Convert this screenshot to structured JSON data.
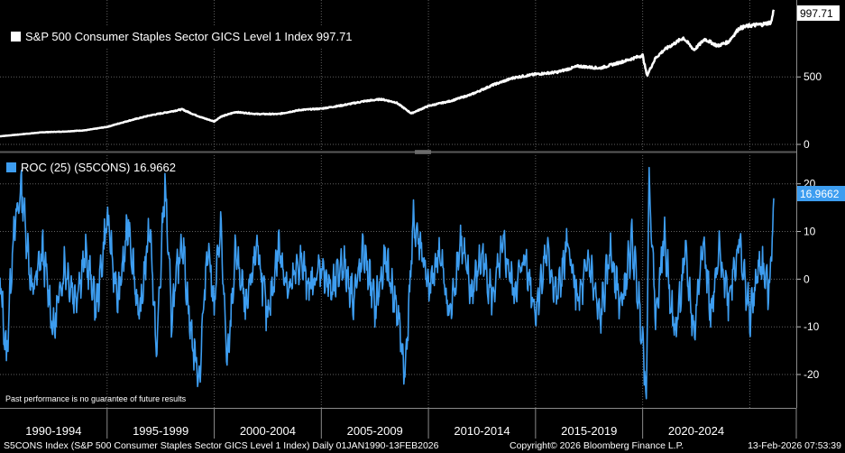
{
  "chart_data": [
    {
      "type": "line",
      "legend_label": "S&P 500 Consumer Staples Sector GICS Level 1 Index 997.71",
      "series": [
        {
          "name": "S&P 500 Consumer Staples Sector GICS Level 1 Index",
          "color": "#ffffff",
          "points": [
            [
              1990.0,
              60
            ],
            [
              1991.0,
              75
            ],
            [
              1992.0,
              90
            ],
            [
              1993.0,
              95
            ],
            [
              1994.0,
              105
            ],
            [
              1995.0,
              130
            ],
            [
              1996.0,
              175
            ],
            [
              1997.0,
              215
            ],
            [
              1997.7,
              235
            ],
            [
              1998.5,
              260
            ],
            [
              1999.0,
              225
            ],
            [
              1999.5,
              195
            ],
            [
              2000.0,
              170
            ],
            [
              2000.3,
              205
            ],
            [
              2001.0,
              240
            ],
            [
              2002.0,
              225
            ],
            [
              2003.0,
              225
            ],
            [
              2004.0,
              255
            ],
            [
              2005.0,
              265
            ],
            [
              2006.0,
              290
            ],
            [
              2007.0,
              320
            ],
            [
              2007.8,
              335
            ],
            [
              2008.5,
              310
            ],
            [
              2009.2,
              230
            ],
            [
              2010.0,
              285
            ],
            [
              2011.0,
              320
            ],
            [
              2012.0,
              370
            ],
            [
              2013.0,
              440
            ],
            [
              2014.0,
              495
            ],
            [
              2015.0,
              520
            ],
            [
              2016.0,
              535
            ],
            [
              2017.0,
              580
            ],
            [
              2018.0,
              565
            ],
            [
              2019.0,
              610
            ],
            [
              2020.0,
              660
            ],
            [
              2020.2,
              510
            ],
            [
              2020.6,
              640
            ],
            [
              2021.0,
              700
            ],
            [
              2021.9,
              790
            ],
            [
              2022.4,
              700
            ],
            [
              2022.9,
              780
            ],
            [
              2023.5,
              730
            ],
            [
              2024.0,
              760
            ],
            [
              2024.5,
              860
            ],
            [
              2025.0,
              880
            ],
            [
              2025.6,
              890
            ],
            [
              2026.0,
              905
            ],
            [
              2026.12,
              997.71
            ]
          ]
        }
      ],
      "last_value_label": "997.71",
      "ytick_labels": [
        "500",
        "0"
      ],
      "ylim": [
        -40,
        1070
      ]
    },
    {
      "type": "line",
      "legend_label": "ROC (25) (S5CONS) 16.9662",
      "series": [
        {
          "name": "ROC (25) (S5CONS)",
          "color": "#3d9df0",
          "points": [
            [
              1990.0,
              0
            ],
            [
              1990.3,
              -16.5
            ],
            [
              1990.6,
              8
            ],
            [
              1991.0,
              19.5
            ],
            [
              1991.5,
              -3
            ],
            [
              1992.0,
              6
            ],
            [
              1992.5,
              -11
            ],
            [
              1993.0,
              3
            ],
            [
              1993.5,
              -4
            ],
            [
              1994.0,
              5
            ],
            [
              1994.5,
              -6
            ],
            [
              1995.0,
              13
            ],
            [
              1995.5,
              -5
            ],
            [
              1996.0,
              12
            ],
            [
              1996.5,
              -9
            ],
            [
              1997.0,
              12
            ],
            [
              1997.3,
              -16
            ],
            [
              1997.7,
              20.5
            ],
            [
              1998.0,
              -8
            ],
            [
              1998.5,
              9
            ],
            [
              1998.9,
              -11
            ],
            [
              1999.3,
              -21
            ],
            [
              1999.7,
              8
            ],
            [
              2000.0,
              -6
            ],
            [
              2000.3,
              12
            ],
            [
              2000.6,
              -19
            ],
            [
              2001.0,
              6
            ],
            [
              2001.5,
              -7
            ],
            [
              2002.0,
              8
            ],
            [
              2002.5,
              -9
            ],
            [
              2003.0,
              7
            ],
            [
              2003.5,
              -3
            ],
            [
              2004.0,
              4
            ],
            [
              2004.5,
              -2
            ],
            [
              2005.0,
              3
            ],
            [
              2005.5,
              -3
            ],
            [
              2006.0,
              4
            ],
            [
              2006.5,
              -4
            ],
            [
              2007.0,
              6
            ],
            [
              2007.5,
              -6
            ],
            [
              2008.0,
              4
            ],
            [
              2008.6,
              -8
            ],
            [
              2008.9,
              -20.5
            ],
            [
              2009.3,
              12
            ],
            [
              2009.7,
              6
            ],
            [
              2010.0,
              -3
            ],
            [
              2010.5,
              6
            ],
            [
              2011.0,
              -8
            ],
            [
              2011.5,
              8
            ],
            [
              2012.0,
              -3
            ],
            [
              2012.5,
              5
            ],
            [
              2013.0,
              -4
            ],
            [
              2013.5,
              7
            ],
            [
              2014.0,
              -3
            ],
            [
              2014.5,
              5
            ],
            [
              2015.0,
              -7
            ],
            [
              2015.5,
              6
            ],
            [
              2016.0,
              -4
            ],
            [
              2016.5,
              7
            ],
            [
              2017.0,
              -5
            ],
            [
              2017.5,
              4
            ],
            [
              2018.0,
              -9
            ],
            [
              2018.5,
              6
            ],
            [
              2019.0,
              -6
            ],
            [
              2019.5,
              8
            ],
            [
              2020.0,
              -12
            ],
            [
              2020.17,
              -24.5
            ],
            [
              2020.3,
              21.5
            ],
            [
              2020.6,
              -8
            ],
            [
              2021.0,
              9
            ],
            [
              2021.5,
              -12
            ],
            [
              2022.0,
              5
            ],
            [
              2022.4,
              -12
            ],
            [
              2022.8,
              9
            ],
            [
              2023.2,
              -8
            ],
            [
              2023.6,
              6
            ],
            [
              2024.0,
              -4
            ],
            [
              2024.5,
              8
            ],
            [
              2025.0,
              -8
            ],
            [
              2025.5,
              4
            ],
            [
              2025.9,
              -3
            ],
            [
              2026.12,
              16.9662
            ]
          ]
        }
      ],
      "last_value_label": "16.9662",
      "ytick_labels": [
        "20",
        "10",
        "0",
        "-10",
        "-20"
      ],
      "ylim": [
        -27,
        26
      ]
    }
  ],
  "x_axis": {
    "labels": [
      "1990-1994",
      "1995-1999",
      "2000-2004",
      "2005-2009",
      "2010-2014",
      "2015-2019",
      "2020-2024"
    ],
    "range": [
      1990.0,
      2026.12
    ]
  },
  "disclaimer": "Past performance is no guarantee of future results",
  "footer": {
    "left": "S5CONS Index (S&P 500 Consumer Staples Sector GICS Level 1 Index) Daily 01JAN1990-13FEB2026",
    "center": "Copyright© 2026 Bloomberg Finance L.P.",
    "right": "13-Feb-2026 07:53:39"
  }
}
